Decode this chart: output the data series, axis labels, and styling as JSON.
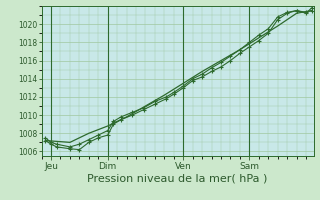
{
  "fig_bg_color": "#cce8cc",
  "plot_bg_color": "#c8e8e8",
  "grid_color": "#a0c8a0",
  "line_color": "#2d6a2d",
  "marker_color": "#2d6a2d",
  "xlabel": "Pression niveau de la mer( hPa )",
  "xlabel_fontsize": 8,
  "ylim": [
    1005.5,
    1022.0
  ],
  "yticks": [
    1006,
    1008,
    1010,
    1012,
    1014,
    1016,
    1018,
    1020
  ],
  "xtick_labels": [
    "Jeu",
    "Dim",
    "Ven",
    "Sam"
  ],
  "xtick_positions": [
    0.5,
    3.5,
    7.5,
    11.0
  ],
  "xlim": [
    0,
    14.4
  ],
  "vline_positions": [
    0.5,
    3.5,
    7.5,
    11.0
  ],
  "line1_x": [
    0.2,
    0.5,
    0.8,
    1.5,
    2.0,
    2.5,
    3.0,
    3.5,
    3.8,
    4.2,
    4.8,
    5.4,
    6.0,
    6.6,
    7.0,
    7.5,
    8.0,
    8.5,
    9.0,
    9.5,
    10.0,
    10.5,
    11.0,
    11.5,
    12.0,
    12.5,
    13.0,
    13.5,
    14.0,
    14.3
  ],
  "line1_y": [
    1007.2,
    1006.8,
    1006.5,
    1006.3,
    1006.2,
    1007.0,
    1007.5,
    1007.8,
    1009.0,
    1009.5,
    1010.0,
    1010.6,
    1011.2,
    1011.8,
    1012.3,
    1013.0,
    1013.8,
    1014.2,
    1014.8,
    1015.3,
    1016.0,
    1016.8,
    1017.5,
    1018.2,
    1019.0,
    1020.5,
    1021.2,
    1021.5,
    1021.3,
    1021.5
  ],
  "line2_x": [
    0.2,
    0.5,
    0.8,
    1.5,
    2.0,
    2.5,
    3.0,
    3.5,
    3.8,
    4.2,
    4.8,
    5.4,
    6.0,
    6.6,
    7.0,
    7.5,
    8.0,
    8.5,
    9.0,
    9.5,
    10.0,
    10.5,
    11.0,
    11.5,
    12.0,
    12.5,
    13.0,
    13.5,
    14.0,
    14.3
  ],
  "line2_y": [
    1007.5,
    1007.0,
    1006.8,
    1006.5,
    1006.8,
    1007.3,
    1007.8,
    1008.3,
    1009.3,
    1009.8,
    1010.3,
    1010.8,
    1011.5,
    1012.0,
    1012.5,
    1013.2,
    1014.0,
    1014.5,
    1015.2,
    1015.8,
    1016.5,
    1017.2,
    1018.0,
    1018.8,
    1019.5,
    1020.8,
    1021.3,
    1021.5,
    1021.2,
    1021.8
  ],
  "line3_x": [
    0.2,
    1.5,
    2.5,
    3.5,
    4.5,
    5.5,
    6.5,
    7.5,
    8.5,
    9.5,
    10.5,
    11.5,
    12.5,
    13.5,
    14.3
  ],
  "line3_y": [
    1007.2,
    1007.0,
    1008.0,
    1008.8,
    1009.8,
    1011.0,
    1012.2,
    1013.5,
    1014.8,
    1016.0,
    1017.2,
    1018.5,
    1019.8,
    1021.2,
    1021.5
  ]
}
